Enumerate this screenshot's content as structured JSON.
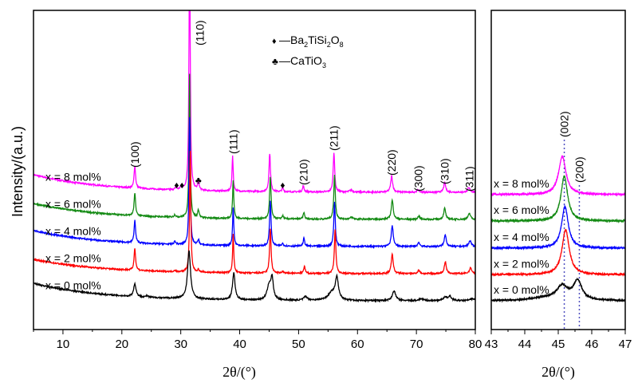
{
  "chart_data": [
    {
      "type": "line",
      "xlabel": "2θ/(°)",
      "ylabel": "Intensity/(a.u.)",
      "xlim": [
        5,
        80
      ],
      "xticks": [
        10,
        20,
        30,
        40,
        50,
        60,
        70,
        80
      ],
      "ylim": [
        0,
        100
      ],
      "yticks_shown": false,
      "grid": false,
      "series": [
        {
          "name": "x = 8 mol%",
          "color": "#ff00ff",
          "offset": 43,
          "background": 5.5,
          "peaks": [
            [
              22.2,
              7,
              0.15
            ],
            [
              29.2,
              0.8,
              0.15
            ],
            [
              30.1,
              1.2,
              0.15
            ],
            [
              31.5,
              80,
              0.12
            ],
            [
              33.0,
              2.6,
              0.15
            ],
            [
              38.8,
              11,
              0.12
            ],
            [
              45.1,
              12,
              0.15
            ],
            [
              47.3,
              1.2,
              0.15
            ],
            [
              50.8,
              1.8,
              0.15
            ],
            [
              56.0,
              12.5,
              0.15
            ],
            [
              58.9,
              0.6,
              0.3
            ],
            [
              65.8,
              5,
              0.2
            ],
            [
              70.3,
              0.8,
              0.2
            ],
            [
              74.8,
              3,
              0.2
            ],
            [
              78.9,
              1.4,
              0.25
            ]
          ]
        },
        {
          "name": "x = 6 mol%",
          "color": "#138a13",
          "offset": 34.5,
          "background": 5,
          "peaks": [
            [
              22.2,
              7,
              0.15
            ],
            [
              29.0,
              0.8,
              0.15
            ],
            [
              31.5,
              45,
              0.12
            ],
            [
              33.0,
              2.4,
              0.15
            ],
            [
              38.9,
              12,
              0.12
            ],
            [
              45.2,
              13,
              0.15
            ],
            [
              47.3,
              1,
              0.15
            ],
            [
              50.9,
              2,
              0.15
            ],
            [
              56.1,
              14,
              0.15
            ],
            [
              59.0,
              0.6,
              0.3
            ],
            [
              65.9,
              6,
              0.2
            ],
            [
              70.4,
              1,
              0.2
            ],
            [
              74.8,
              3.5,
              0.2
            ],
            [
              79.0,
              1.8,
              0.25
            ]
          ]
        },
        {
          "name": "x = 4 mol%",
          "color": "#0000ff",
          "offset": 26,
          "background": 5,
          "peaks": [
            [
              22.2,
              7,
              0.15
            ],
            [
              29.0,
              1,
              0.15
            ],
            [
              31.5,
              40,
              0.12
            ],
            [
              33.0,
              1.6,
              0.15
            ],
            [
              38.9,
              12,
              0.12
            ],
            [
              45.2,
              14,
              0.15
            ],
            [
              47.3,
              0.8,
              0.15
            ],
            [
              50.9,
              2.5,
              0.15
            ],
            [
              56.1,
              14,
              0.15
            ],
            [
              65.9,
              6.5,
              0.2
            ],
            [
              70.4,
              1.3,
              0.2
            ],
            [
              74.9,
              3.8,
              0.2
            ],
            [
              79.1,
              1.8,
              0.25
            ]
          ]
        },
        {
          "name": "x = 2 mol%",
          "color": "#ff0000",
          "offset": 17.5,
          "background": 4.5,
          "peaks": [
            [
              22.2,
              7,
              0.15
            ],
            [
              29.0,
              0.5,
              0.15
            ],
            [
              31.6,
              38,
              0.12
            ],
            [
              33.0,
              0.8,
              0.15
            ],
            [
              38.9,
              12,
              0.12
            ],
            [
              45.2,
              14,
              0.15
            ],
            [
              47.3,
              0.6,
              0.15
            ],
            [
              51.0,
              2.2,
              0.15
            ],
            [
              56.2,
              14,
              0.15
            ],
            [
              65.9,
              6,
              0.2
            ],
            [
              70.4,
              1.1,
              0.2
            ],
            [
              74.9,
              3.7,
              0.2
            ],
            [
              79.2,
              1.8,
              0.25
            ]
          ]
        },
        {
          "name": "x = 0 mol%",
          "color": "#000000",
          "offset": 9,
          "background": 5.5,
          "peaks": [
            [
              22.2,
              4,
              0.25
            ],
            [
              24.3,
              0.5,
              0.2
            ],
            [
              31.4,
              15,
              0.3
            ],
            [
              39.0,
              8.5,
              0.25
            ],
            [
              45.0,
              4.5,
              0.4
            ],
            [
              45.5,
              6.2,
              0.25
            ],
            [
              51.2,
              1.2,
              0.35
            ],
            [
              55.7,
              2.5,
              0.8
            ],
            [
              56.5,
              6.5,
              0.3
            ],
            [
              66.2,
              3,
              0.35
            ],
            [
              70.8,
              0.6,
              0.4
            ],
            [
              74.9,
              1,
              0.5
            ],
            [
              75.7,
              1.2,
              0.3
            ],
            [
              79.5,
              0.6,
              0.5
            ]
          ]
        }
      ],
      "annotations": {
        "hkl": [
          {
            "label": "(100)",
            "x": 22.2
          },
          {
            "label": "(110)",
            "x": 33.2
          },
          {
            "label": "(111)",
            "x": 38.9
          },
          {
            "label": "(210)",
            "x": 50.8
          },
          {
            "label": "(211)",
            "x": 56.0
          },
          {
            "label": "(220)",
            "x": 65.8
          },
          {
            "label": "(300)",
            "x": 70.3
          },
          {
            "label": "(310)",
            "x": 74.8
          },
          {
            "label": "(311)",
            "x": 79.0
          }
        ],
        "phase_markers": [
          {
            "symbol": "♦",
            "x": 29.3
          },
          {
            "symbol": "♦",
            "x": 30.2
          },
          {
            "symbol": "♣",
            "x": 33.0
          },
          {
            "symbol": "♦",
            "x": 47.3
          }
        ],
        "legend": [
          {
            "symbol": "♦",
            "text": "—Ba",
            "sub1": "2",
            "mid": "TiSi",
            "sub2": "2",
            "mid2": "O",
            "sub3": "8"
          },
          {
            "symbol": "♣",
            "text": "—CaTiO",
            "sub1": "3"
          }
        ]
      }
    },
    {
      "type": "line",
      "xlabel": "2θ/(°)",
      "xlim": [
        43,
        47
      ],
      "xticks": [
        43,
        44,
        45,
        46,
        47
      ],
      "ylim": [
        0,
        100
      ],
      "grid": false,
      "series": [
        {
          "name": "x = 8 mol%",
          "color": "#ff00ff",
          "offset": 42.3,
          "peaks": [
            [
              45.12,
              12,
              0.13
            ]
          ]
        },
        {
          "name": "x = 6 mol%",
          "color": "#138a13",
          "offset": 34,
          "peaks": [
            [
              45.18,
              14,
              0.12
            ]
          ]
        },
        {
          "name": "x = 4 mol%",
          "color": "#0000ff",
          "offset": 25.5,
          "peaks": [
            [
              45.2,
              13,
              0.12
            ]
          ]
        },
        {
          "name": "x = 2 mol%",
          "color": "#ff0000",
          "offset": 17.2,
          "peaks": [
            [
              45.22,
              14,
              0.13
            ]
          ]
        },
        {
          "name": "x = 0 mol%",
          "color": "#000000",
          "offset": 9,
          "peaks": [
            [
              44.6,
              0.8,
              0.5
            ],
            [
              45.12,
              4.3,
              0.2
            ],
            [
              45.58,
              6,
              0.15
            ]
          ]
        }
      ],
      "reference_lines": [
        {
          "label": "(002)",
          "x": 45.18,
          "color": "#5050c0"
        },
        {
          "label": "(200)",
          "x": 45.63,
          "color": "#5050c0"
        }
      ]
    }
  ]
}
